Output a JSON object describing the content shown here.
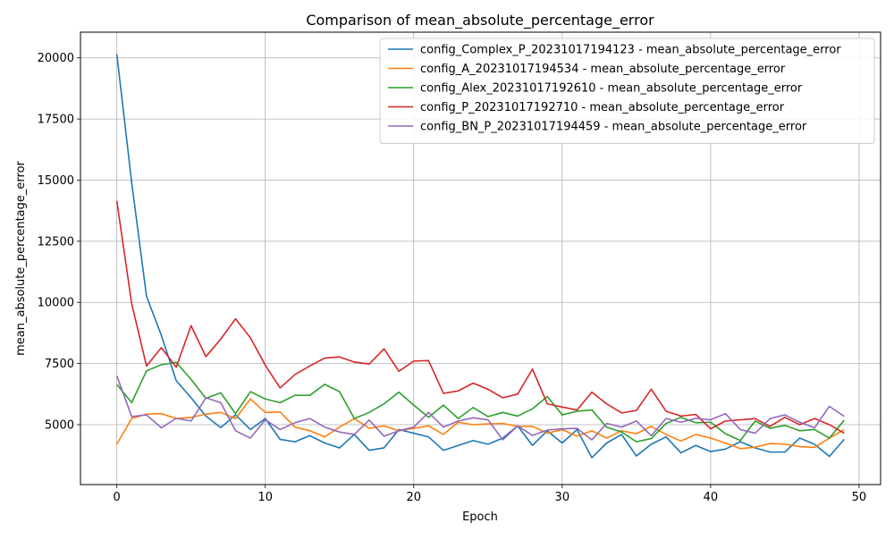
{
  "chart_data": {
    "type": "line",
    "title": "Comparison of mean_absolute_percentage_error",
    "xlabel": "Epoch",
    "ylabel": "mean_absolute_percentage_error",
    "xlim": [
      -2.45,
      51.45
    ],
    "ylim": [
      2550,
      21050
    ],
    "xticks": [
      0,
      10,
      20,
      30,
      40,
      50
    ],
    "xtick_labels": [
      "0",
      "10",
      "20",
      "30",
      "40",
      "50"
    ],
    "yticks": [
      5000,
      7500,
      10000,
      12500,
      15000,
      17500,
      20000
    ],
    "ytick_labels": [
      "5000",
      "7500",
      "10000",
      "12500",
      "15000",
      "17500",
      "20000"
    ],
    "grid": true,
    "legend_position": "top-right",
    "x": [
      0,
      1,
      2,
      3,
      4,
      5,
      6,
      7,
      8,
      9,
      10,
      11,
      12,
      13,
      14,
      15,
      16,
      17,
      18,
      19,
      20,
      21,
      22,
      23,
      24,
      25,
      26,
      27,
      28,
      29,
      30,
      31,
      32,
      33,
      34,
      35,
      36,
      37,
      38,
      39,
      40,
      41,
      42,
      43,
      44,
      45,
      46,
      47,
      48,
      49
    ],
    "series": [
      {
        "name": "config_Complex_P_20231017194123 - mean_absolute_percentage_error",
        "color": "#1f77b4",
        "values": [
          20150,
          14900,
          10250,
          8650,
          6800,
          6100,
          5350,
          4880,
          5400,
          4800,
          5250,
          4400,
          4300,
          4550,
          4250,
          4050,
          4600,
          3950,
          4050,
          4800,
          4650,
          4500,
          3950,
          4150,
          4350,
          4200,
          4450,
          4950,
          4150,
          4750,
          4250,
          4800,
          3650,
          4250,
          4600,
          3720,
          4200,
          4500,
          3850,
          4150,
          3900,
          4000,
          4300,
          4050,
          3880,
          3880,
          4450,
          4200,
          3700,
          4400
        ]
      },
      {
        "name": "config_A_20231017194534 - mean_absolute_percentage_error",
        "color": "#ff7f0e",
        "values": [
          4200,
          5250,
          5430,
          5450,
          5250,
          5300,
          5430,
          5500,
          5250,
          6050,
          5500,
          5520,
          4900,
          4750,
          4500,
          4900,
          5250,
          4850,
          4950,
          4750,
          4850,
          4950,
          4600,
          5100,
          5000,
          5030,
          5050,
          4930,
          4930,
          4650,
          4800,
          4530,
          4750,
          4450,
          4750,
          4630,
          4930,
          4600,
          4330,
          4600,
          4450,
          4250,
          4020,
          4080,
          4230,
          4200,
          4100,
          4070,
          4450,
          4800
        ]
      },
      {
        "name": "config_Alex_20231017192610 - mean_absolute_percentage_error",
        "color": "#2ca02c",
        "values": [
          6650,
          5900,
          7200,
          7450,
          7550,
          6850,
          6080,
          6300,
          5450,
          6350,
          6050,
          5900,
          6200,
          6200,
          6650,
          6350,
          5250,
          5500,
          5850,
          6330,
          5800,
          5300,
          5800,
          5250,
          5700,
          5330,
          5500,
          5350,
          5650,
          6150,
          5400,
          5550,
          5600,
          4900,
          4700,
          4300,
          4430,
          5050,
          5300,
          5080,
          5100,
          4630,
          4350,
          5150,
          4850,
          4970,
          4750,
          4800,
          4450,
          5180
        ]
      },
      {
        "name": "config_P_20231017192710 - mean_absolute_percentage_error",
        "color": "#d62728",
        "values": [
          14150,
          9950,
          7400,
          8150,
          7350,
          9050,
          7780,
          8500,
          9330,
          8550,
          7430,
          6500,
          7050,
          7400,
          7720,
          7770,
          7560,
          7480,
          8100,
          7180,
          7600,
          7620,
          6280,
          6380,
          6700,
          6450,
          6100,
          6250,
          7270,
          5850,
          5720,
          5600,
          6330,
          5850,
          5480,
          5580,
          6450,
          5550,
          5350,
          5420,
          4830,
          5150,
          5200,
          5250,
          4930,
          5300,
          5000,
          5250,
          5000,
          4650
        ]
      },
      {
        "name": "config_BN_P_20231017194459 - mean_absolute_percentage_error",
        "color": "#9467bd",
        "values": [
          7000,
          5330,
          5400,
          4870,
          5260,
          5150,
          6100,
          5900,
          4750,
          4450,
          5200,
          4800,
          5080,
          5250,
          4900,
          4700,
          4600,
          5190,
          4530,
          4750,
          4900,
          5500,
          4900,
          5150,
          5280,
          5200,
          4380,
          4950,
          4560,
          4780,
          4830,
          4850,
          4380,
          5050,
          4900,
          5150,
          4550,
          5250,
          5100,
          5260,
          5200,
          5450,
          4800,
          4650,
          5250,
          5400,
          5100,
          4870,
          5750,
          5340
        ]
      }
    ]
  }
}
